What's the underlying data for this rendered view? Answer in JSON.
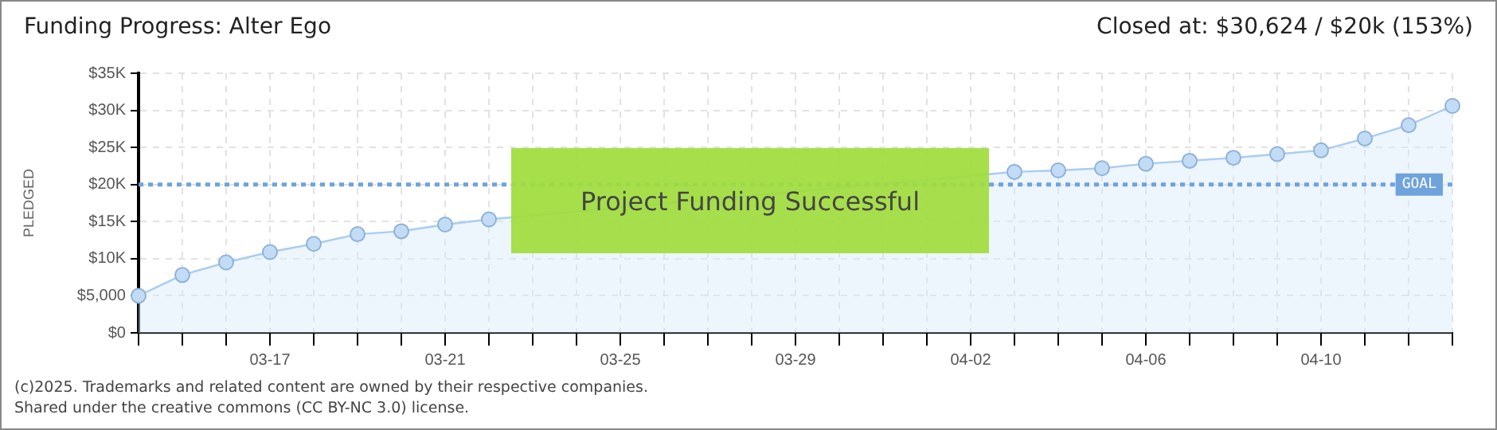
{
  "chart_data": {
    "type": "area",
    "title": "Funding Progress: Alter Ego",
    "subtitle": "Closed at: $30,624 / $20k (153%)",
    "ylabel": "PLEDGED",
    "categories": [
      null,
      null,
      null,
      "03-17",
      null,
      null,
      null,
      "03-21",
      null,
      null,
      null,
      "03-25",
      null,
      null,
      null,
      "03-29",
      null,
      null,
      null,
      "04-02",
      null,
      null,
      null,
      "04-06",
      null,
      null,
      null,
      "04-10",
      null,
      null,
      null
    ],
    "series": [
      {
        "color": "#a9cdf0",
        "values": [
          5000,
          7800,
          9500,
          10900,
          12000,
          13300,
          13700,
          14600,
          15300,
          null,
          null,
          null,
          null,
          null,
          null,
          null,
          null,
          null,
          null,
          null,
          21700,
          21900,
          22200,
          22800,
          23200,
          23600,
          24100,
          24600,
          26200,
          28000,
          30600
        ]
      }
    ],
    "ylim": [
      0,
      35000
    ],
    "yticks": [
      {
        "value": 0,
        "label": "$0"
      },
      {
        "value": 5000,
        "label": "$5,000"
      },
      {
        "value": 10000,
        "label": "$10K"
      },
      {
        "value": 15000,
        "label": "$15K"
      },
      {
        "value": 20000,
        "label": "$20K"
      },
      {
        "value": 25000,
        "label": "$25K"
      },
      {
        "value": 30000,
        "label": "$30K"
      },
      {
        "value": 35000,
        "label": "$35K"
      }
    ],
    "ref_lines": [
      {
        "axis": "y",
        "value": 20000,
        "label": "GOAL",
        "color": "#6fa3dc",
        "line_style": "dotted"
      }
    ],
    "annotations": [
      "Project Funding Successful",
      "(c)2025. Trademarks and related content are owned by their respective companies.",
      "Shared under the creative commons (CC BY-NC 3.0) license."
    ],
    "grid": true,
    "legend": false,
    "marker": "circle",
    "line_style": "solid"
  }
}
